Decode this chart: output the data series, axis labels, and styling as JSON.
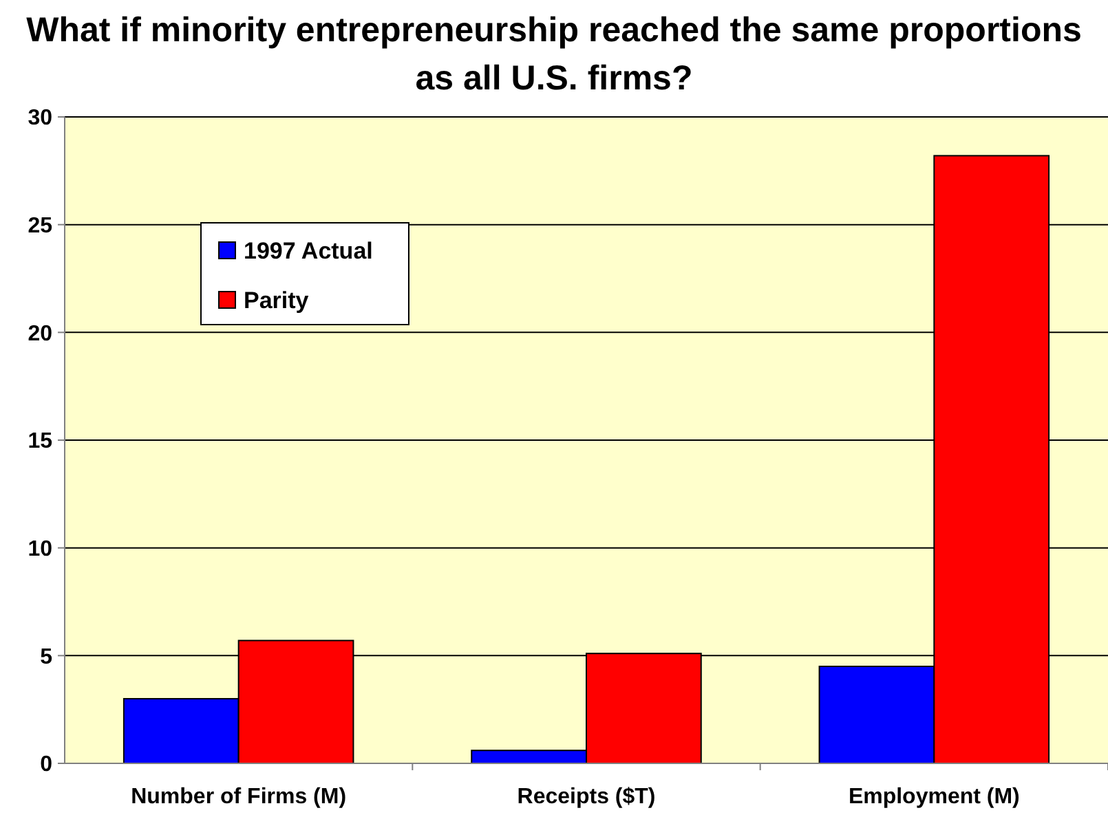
{
  "chart_data": {
    "type": "bar",
    "title": "What if minority entrepreneurship reached the same proportions as all U.S. firms?",
    "categories": [
      "Number of Firms (M)",
      "Receipts ($T)",
      "Employment (M)"
    ],
    "series": [
      {
        "name": "1997 Actual",
        "color": "#0000ff",
        "values": [
          3.0,
          0.6,
          4.5
        ]
      },
      {
        "name": "Parity",
        "color": "#ff0000",
        "values": [
          5.7,
          5.1,
          28.2
        ]
      }
    ],
    "ylim": [
      0,
      30
    ],
    "yticks": [
      0,
      5,
      10,
      15,
      20,
      25,
      30
    ],
    "grid": "y",
    "legend": "top left"
  }
}
